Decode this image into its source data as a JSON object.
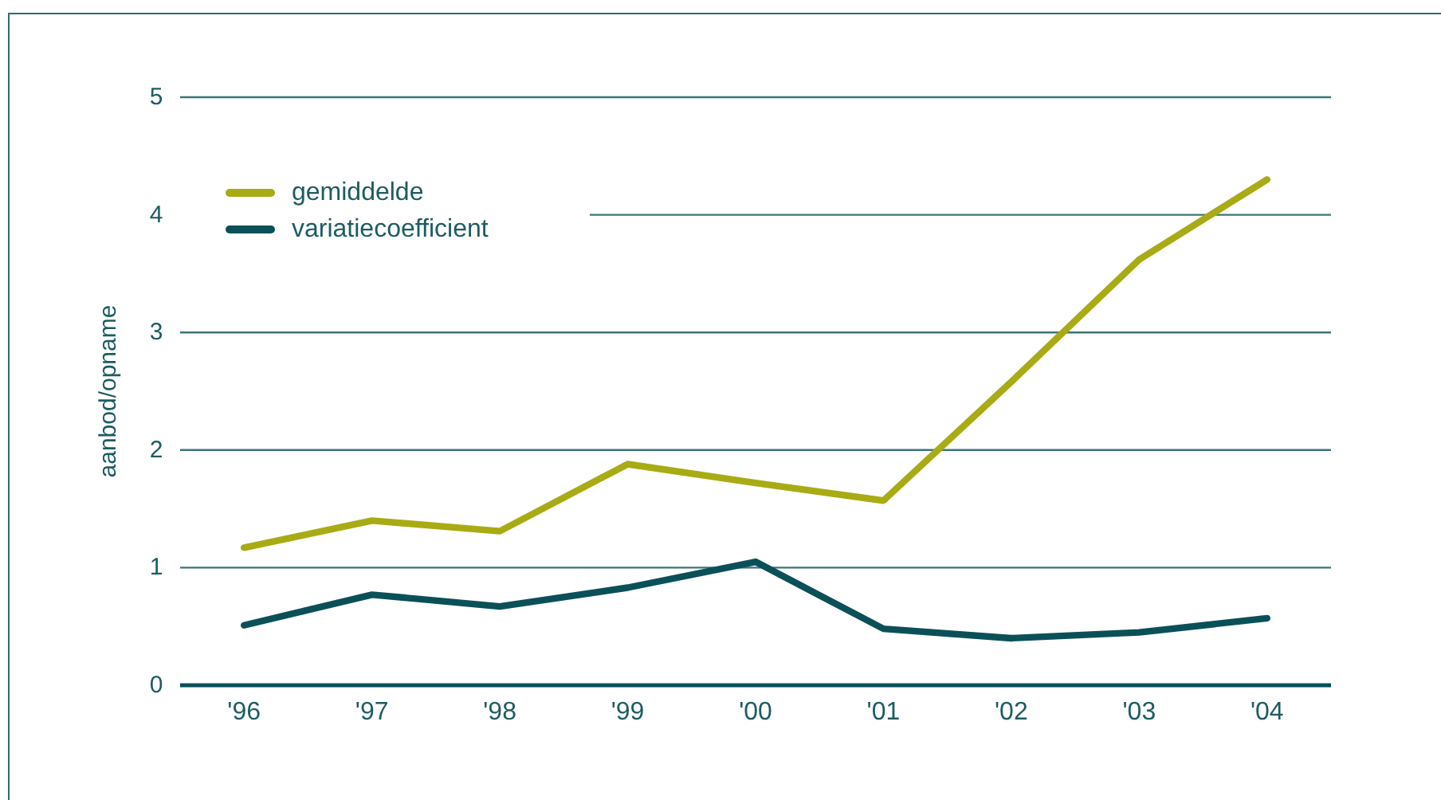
{
  "chart_data": {
    "type": "line",
    "ylabel": "aanbod/opname",
    "categories": [
      "'96",
      "'97",
      "'98",
      "'99",
      "'00",
      "'01",
      "'02",
      "'03",
      "'04"
    ],
    "series": [
      {
        "name": "gemiddelde",
        "color": "#a8ab14",
        "values": [
          1.17,
          1.4,
          1.31,
          1.88,
          1.72,
          1.57,
          2.58,
          3.62,
          4.3
        ]
      },
      {
        "name": "variatiecoefficient",
        "color": "#0b5058",
        "values": [
          0.51,
          0.77,
          0.67,
          0.83,
          1.05,
          0.48,
          0.4,
          0.45,
          0.57
        ]
      }
    ],
    "ylim": [
      0,
      5
    ],
    "yticks": [
      0,
      1,
      2,
      3,
      4,
      5
    ],
    "grid": "y",
    "legend": "top left",
    "line_style": "solid"
  }
}
